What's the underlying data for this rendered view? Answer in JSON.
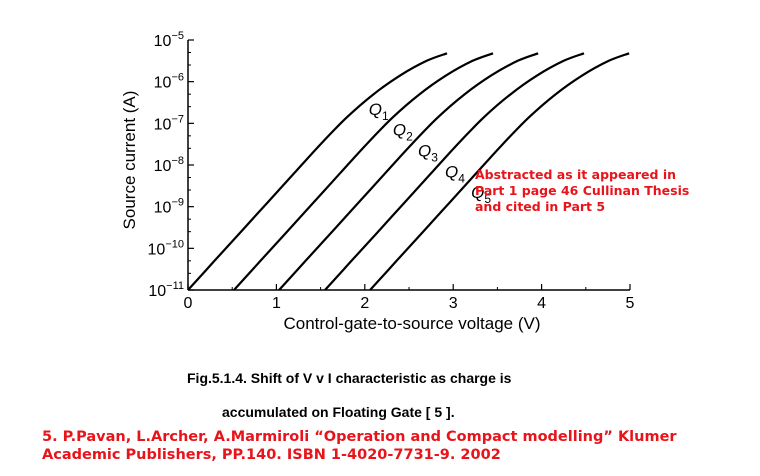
{
  "chart_data": {
    "type": "line",
    "xlabel": "Control-gate-to-source voltage (V)",
    "ylabel": "Source current (A)",
    "xlim": [
      0,
      5
    ],
    "ylim_exponent": [
      -11,
      -5
    ],
    "y_scale": "log",
    "x_ticks": [
      0,
      1,
      2,
      3,
      4,
      5
    ],
    "y_ticks": [
      {
        "base": "10",
        "exp": "−5"
      },
      {
        "base": "10",
        "exp": "−6"
      },
      {
        "base": "10",
        "exp": "−7"
      },
      {
        "base": "10",
        "exp": "−8"
      },
      {
        "base": "10",
        "exp": "−9"
      },
      {
        "base": "10",
        "exp": "−10"
      },
      {
        "base": "10",
        "exp": "−11"
      }
    ],
    "grid": false,
    "series": [
      {
        "name": "Q1",
        "label_main": "Q",
        "label_sub": "1",
        "points": [
          [
            0.0,
            -11
          ],
          [
            0.3,
            -10.3
          ],
          [
            0.6,
            -9.6
          ],
          [
            0.9,
            -8.9
          ],
          [
            1.2,
            -8.2
          ],
          [
            1.5,
            -7.5
          ],
          [
            1.8,
            -6.85
          ],
          [
            2.1,
            -6.3
          ],
          [
            2.4,
            -5.85
          ],
          [
            2.7,
            -5.5
          ],
          [
            2.93,
            -5.32
          ]
        ]
      },
      {
        "name": "Q2",
        "label_main": "Q",
        "label_sub": "2",
        "points": [
          [
            0.52,
            -11
          ],
          [
            0.82,
            -10.3
          ],
          [
            1.12,
            -9.6
          ],
          [
            1.42,
            -8.9
          ],
          [
            1.72,
            -8.2
          ],
          [
            2.02,
            -7.5
          ],
          [
            2.32,
            -6.85
          ],
          [
            2.62,
            -6.3
          ],
          [
            2.92,
            -5.85
          ],
          [
            3.22,
            -5.5
          ],
          [
            3.45,
            -5.32
          ]
        ]
      },
      {
        "name": "Q3",
        "label_main": "Q",
        "label_sub": "3",
        "points": [
          [
            1.03,
            -11
          ],
          [
            1.33,
            -10.3
          ],
          [
            1.63,
            -9.6
          ],
          [
            1.93,
            -8.9
          ],
          [
            2.23,
            -8.2
          ],
          [
            2.53,
            -7.5
          ],
          [
            2.83,
            -6.85
          ],
          [
            3.13,
            -6.3
          ],
          [
            3.43,
            -5.85
          ],
          [
            3.73,
            -5.5
          ],
          [
            3.96,
            -5.32
          ]
        ]
      },
      {
        "name": "Q4",
        "label_main": "Q",
        "label_sub": "4",
        "points": [
          [
            1.55,
            -11
          ],
          [
            1.85,
            -10.3
          ],
          [
            2.15,
            -9.6
          ],
          [
            2.45,
            -8.9
          ],
          [
            2.75,
            -8.2
          ],
          [
            3.05,
            -7.5
          ],
          [
            3.35,
            -6.85
          ],
          [
            3.65,
            -6.3
          ],
          [
            3.95,
            -5.85
          ],
          [
            4.25,
            -5.5
          ],
          [
            4.48,
            -5.32
          ]
        ]
      },
      {
        "name": "Q5",
        "label_main": "Q",
        "label_sub": "5",
        "points": [
          [
            2.06,
            -11
          ],
          [
            2.36,
            -10.3
          ],
          [
            2.66,
            -9.6
          ],
          [
            2.96,
            -8.9
          ],
          [
            3.26,
            -8.2
          ],
          [
            3.56,
            -7.5
          ],
          [
            3.86,
            -6.85
          ],
          [
            4.16,
            -6.3
          ],
          [
            4.46,
            -5.85
          ],
          [
            4.76,
            -5.5
          ],
          [
            4.99,
            -5.32
          ]
        ]
      }
    ],
    "curve_color": "#000000"
  },
  "annotation": {
    "lines": [
      "Abstracted as it appeared in",
      "Part 1 page 46 Cullinan Thesis",
      "and cited in Part 5"
    ],
    "color": "#e8141b"
  },
  "caption": {
    "line1": "Fig.5.1.4. Shift of V v I characteristic as charge is",
    "line2": "accumulated on Floating Gate [ 5 ]."
  },
  "reference": {
    "text": "5. P.Pavan, L.Archer, A.Marmiroli “Operation and Compact modelling” Klumer Academic Publishers, PP.140. ISBN 1-4020-7731-9. 2002",
    "color": "#e8141b"
  }
}
